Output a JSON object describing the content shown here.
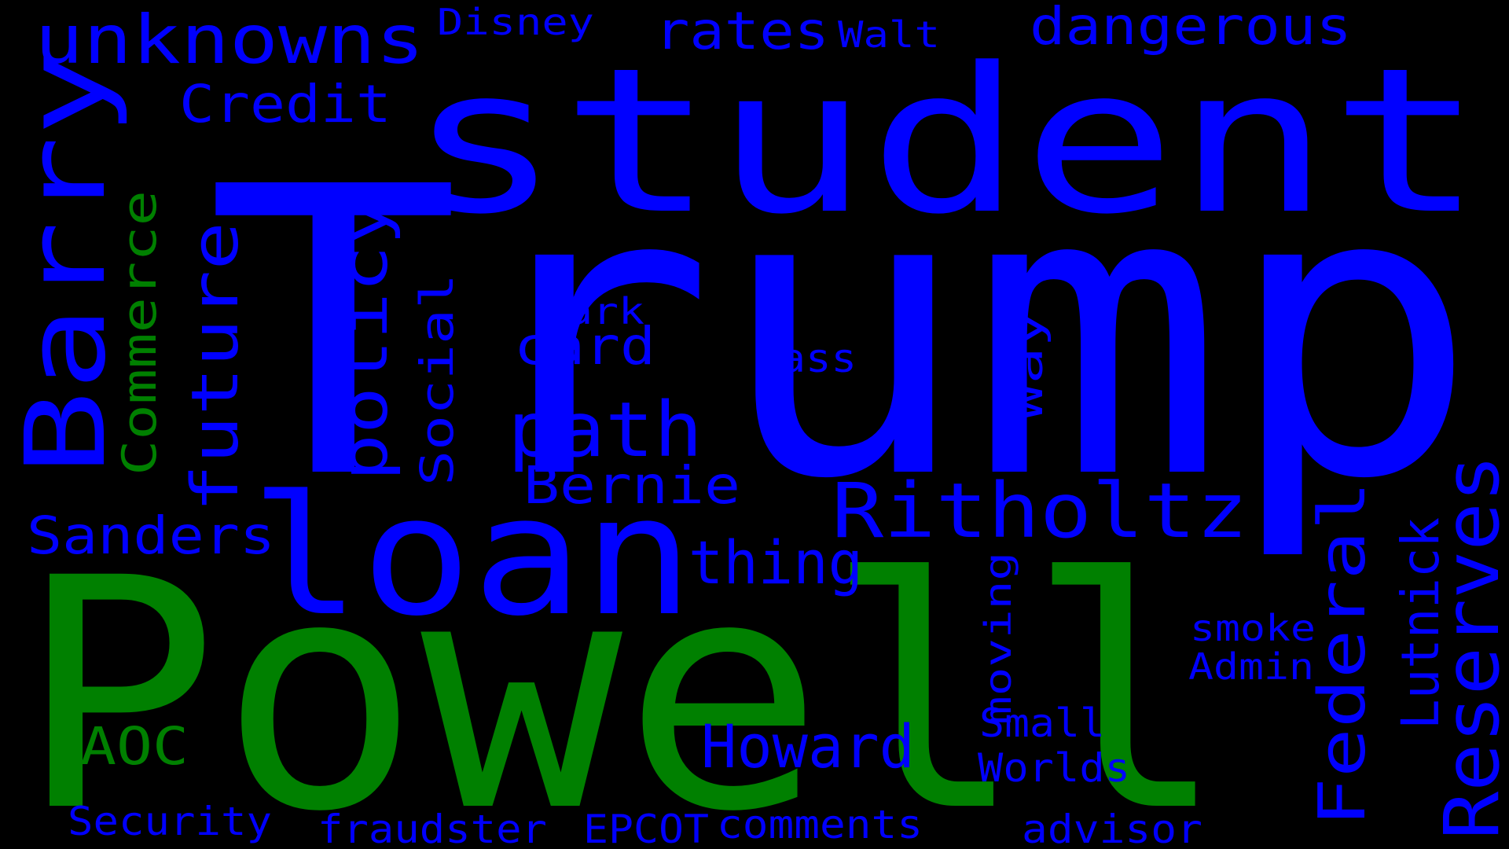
{
  "colors": {
    "background": "#000000",
    "blue": "#0000ff",
    "green": "#008000"
  },
  "words": [
    {
      "id": "trump",
      "text": "Trump",
      "color": "blue"
    },
    {
      "id": "powell",
      "text": "Powell",
      "color": "green"
    },
    {
      "id": "student",
      "text": "student",
      "color": "blue"
    },
    {
      "id": "loan",
      "text": "loan",
      "color": "blue"
    },
    {
      "id": "barry",
      "text": "Barry",
      "color": "blue"
    },
    {
      "id": "ritholtz",
      "text": "Ritholtz",
      "color": "blue"
    },
    {
      "id": "unknowns",
      "text": "unknowns",
      "color": "blue"
    },
    {
      "id": "dangerous",
      "text": "dangerous",
      "color": "blue"
    },
    {
      "id": "rates",
      "text": "rates",
      "color": "blue"
    },
    {
      "id": "disney",
      "text": "Disney",
      "color": "blue"
    },
    {
      "id": "walt",
      "text": "Walt",
      "color": "blue"
    },
    {
      "id": "credit",
      "text": "Credit",
      "color": "blue"
    },
    {
      "id": "commerce",
      "text": "Commerce",
      "color": "green"
    },
    {
      "id": "future",
      "text": "future",
      "color": "blue"
    },
    {
      "id": "policy",
      "text": "policy",
      "color": "blue"
    },
    {
      "id": "social",
      "text": "Social",
      "color": "blue"
    },
    {
      "id": "dark",
      "text": "dark",
      "color": "blue"
    },
    {
      "id": "card",
      "text": "card",
      "color": "blue"
    },
    {
      "id": "mass",
      "text": "Mass",
      "color": "blue"
    },
    {
      "id": "way",
      "text": "Way",
      "color": "blue"
    },
    {
      "id": "path",
      "text": "path",
      "color": "blue"
    },
    {
      "id": "bernie",
      "text": "Bernie",
      "color": "blue"
    },
    {
      "id": "sanders",
      "text": "Sanders",
      "color": "blue"
    },
    {
      "id": "thing",
      "text": "thing",
      "color": "blue"
    },
    {
      "id": "federal",
      "text": "Federal",
      "color": "blue"
    },
    {
      "id": "reserves",
      "text": "Reserves",
      "color": "blue"
    },
    {
      "id": "lutnick",
      "text": "Lutnick",
      "color": "blue"
    },
    {
      "id": "smoke",
      "text": "smoke",
      "color": "blue"
    },
    {
      "id": "admin",
      "text": "Admin",
      "color": "blue"
    },
    {
      "id": "moving",
      "text": "moving",
      "color": "blue"
    },
    {
      "id": "small",
      "text": "Small",
      "color": "blue"
    },
    {
      "id": "worlds",
      "text": "Worlds",
      "color": "blue"
    },
    {
      "id": "howard",
      "text": "Howard",
      "color": "blue"
    },
    {
      "id": "aoc",
      "text": "AOC",
      "color": "green"
    },
    {
      "id": "security",
      "text": "Security",
      "color": "blue"
    },
    {
      "id": "fraudster",
      "text": "fraudster",
      "color": "blue"
    },
    {
      "id": "epcot",
      "text": "EPCOT",
      "color": "blue"
    },
    {
      "id": "comments",
      "text": "comments",
      "color": "blue"
    },
    {
      "id": "advisor",
      "text": "advisor",
      "color": "blue"
    }
  ]
}
